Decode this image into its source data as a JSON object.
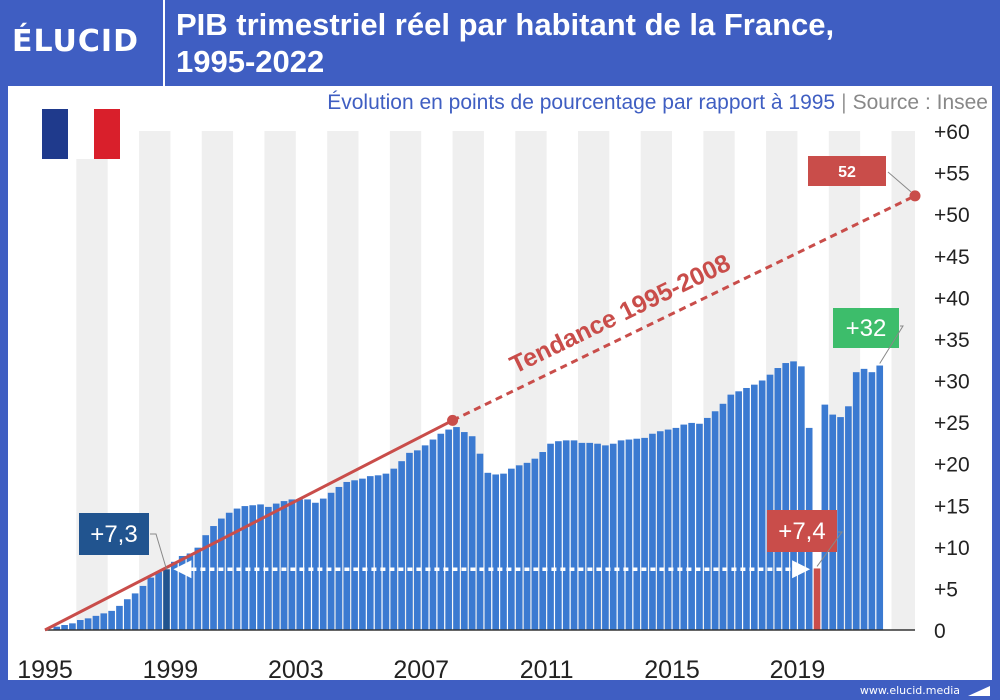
{
  "header": {
    "logo_text": "ÉLUCID",
    "title_line1": "PIB trimestriel réel par habitant de la France,",
    "title_line2": "1995-2022"
  },
  "subtitle": {
    "text": "Évolution en points de pourcentage par rapport à 1995",
    "separator": "|",
    "source": "Source : Insee"
  },
  "flag": {
    "colors": [
      "#1f3a8c",
      "#ffffff",
      "#d91f2b"
    ]
  },
  "footer": {
    "url": "www.elucid.media"
  },
  "colors": {
    "bar": "#3b7ad1",
    "highlight_1999": "#21548f",
    "highlight_2020": "#c94d4a",
    "trend": "#c94d4a",
    "label_green": "#3dbd6b",
    "band": "#efefef"
  },
  "chart_data": {
    "type": "bar",
    "x_ticks": [
      "1995",
      "1999",
      "2003",
      "2007",
      "2011",
      "2015",
      "2019"
    ],
    "y_ticks": [
      "0",
      "+5",
      "+10",
      "+15",
      "+20",
      "+25",
      "+30",
      "+35",
      "+40",
      "+45",
      "+50",
      "+55",
      "+60"
    ],
    "ylim": [
      0,
      60
    ],
    "x_range": [
      1995,
      2022.75
    ],
    "values": [
      0.0,
      0.4,
      0.6,
      0.8,
      1.2,
      1.4,
      1.7,
      2.0,
      2.3,
      2.9,
      3.7,
      4.4,
      5.3,
      6.3,
      7.0,
      7.3,
      8.2,
      8.9,
      9.2,
      9.9,
      11.4,
      12.5,
      13.4,
      14.1,
      14.6,
      14.9,
      15.0,
      15.1,
      14.8,
      15.2,
      15.5,
      15.7,
      15.7,
      15.7,
      15.3,
      15.8,
      16.5,
      17.2,
      17.8,
      18.0,
      18.2,
      18.5,
      18.6,
      18.8,
      19.4,
      20.3,
      21.3,
      21.6,
      22.2,
      22.9,
      23.6,
      24.1,
      24.4,
      23.8,
      23.3,
      21.2,
      18.9,
      18.7,
      18.8,
      19.4,
      19.8,
      20.1,
      20.6,
      21.4,
      22.4,
      22.7,
      22.8,
      22.8,
      22.5,
      22.5,
      22.4,
      22.2,
      22.4,
      22.8,
      22.9,
      23.0,
      23.1,
      23.6,
      23.9,
      24.1,
      24.3,
      24.7,
      24.9,
      24.8,
      25.5,
      26.3,
      27.2,
      28.3,
      28.7,
      29.1,
      29.5,
      30.0,
      30.7,
      31.5,
      32.1,
      32.3,
      31.7,
      24.3,
      7.4,
      27.1,
      25.9,
      25.6,
      26.9,
      31.0,
      31.4,
      31.0,
      31.8
    ],
    "highlights": [
      {
        "index": 15,
        "label": "+7,3"
      },
      {
        "index": 98,
        "label": "+7,4"
      }
    ],
    "last_label": "+32",
    "trend": {
      "label": "Tendance 1995-2008",
      "start": [
        1995,
        0
      ],
      "break": [
        2008,
        25.2
      ],
      "end": [
        2022.75,
        52.2
      ],
      "end_label": "52"
    }
  }
}
